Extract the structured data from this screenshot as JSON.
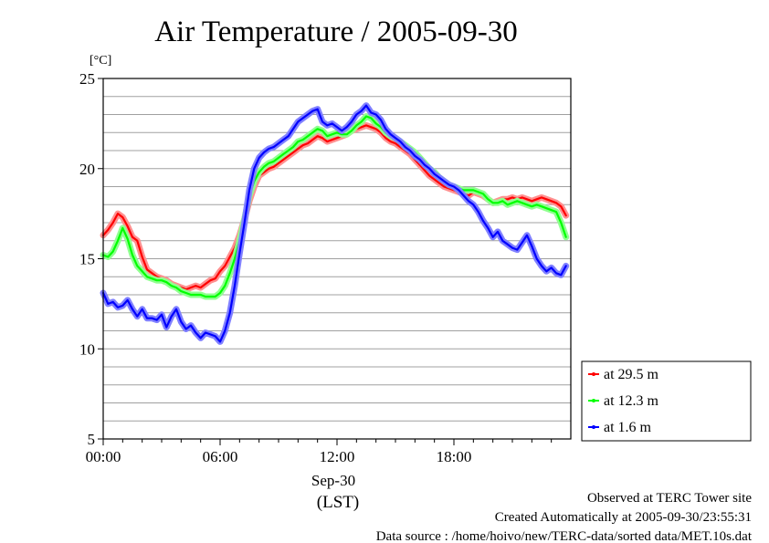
{
  "chart_data": {
    "type": "line",
    "title": "Air Temperature / 2005-09-30",
    "ylabel": "[°C]",
    "xlabel_line1": "Sep-30",
    "xlabel_line2": "(LST)",
    "ylim": [
      5,
      25
    ],
    "xlim": [
      0,
      24
    ],
    "y_ticks": [
      5,
      10,
      15,
      20,
      25
    ],
    "y_tick_labels": [
      "5",
      "10",
      "15",
      "20",
      "25"
    ],
    "x_ticks": [
      0,
      6,
      12,
      18
    ],
    "x_tick_labels": [
      "00:00",
      "06:00",
      "12:00",
      "18:00"
    ],
    "grid": true,
    "legend_position": "right",
    "x": [
      0,
      0.25,
      0.5,
      0.75,
      1,
      1.25,
      1.5,
      1.75,
      2,
      2.25,
      2.5,
      2.75,
      3,
      3.25,
      3.5,
      3.75,
      4,
      4.25,
      4.5,
      4.75,
      5,
      5.25,
      5.5,
      5.75,
      6,
      6.25,
      6.5,
      6.75,
      7,
      7.25,
      7.5,
      7.75,
      8,
      8.25,
      8.5,
      8.75,
      9,
      9.25,
      9.5,
      9.75,
      10,
      10.25,
      10.5,
      10.75,
      11,
      11.25,
      11.5,
      11.75,
      12,
      12.25,
      12.5,
      12.75,
      13,
      13.25,
      13.5,
      13.75,
      14,
      14.25,
      14.5,
      14.75,
      15,
      15.25,
      15.5,
      15.75,
      16,
      16.25,
      16.5,
      16.75,
      17,
      17.25,
      17.5,
      17.75,
      18,
      18.25,
      18.5,
      18.75,
      19,
      19.25,
      19.5,
      19.75,
      20,
      20.25,
      20.5,
      20.75,
      21,
      21.25,
      21.5,
      21.75,
      22,
      22.25,
      22.5,
      22.75,
      23,
      23.25,
      23.5,
      23.75
    ],
    "series": [
      {
        "name": "at 29.5 m",
        "color": "#ff0000",
        "band_color": "#ff9090",
        "values": [
          16.3,
          16.6,
          17.0,
          17.5,
          17.3,
          16.8,
          16.2,
          16.0,
          15.1,
          14.4,
          14.2,
          14.0,
          13.9,
          13.8,
          13.6,
          13.5,
          13.4,
          13.3,
          13.4,
          13.5,
          13.4,
          13.6,
          13.8,
          13.9,
          14.3,
          14.6,
          15.1,
          15.6,
          16.3,
          17.2,
          18.2,
          19.0,
          19.6,
          19.8,
          20.0,
          20.1,
          20.3,
          20.5,
          20.7,
          20.9,
          21.1,
          21.3,
          21.4,
          21.6,
          21.8,
          21.7,
          21.5,
          21.6,
          21.7,
          21.8,
          21.9,
          22.1,
          22.2,
          22.3,
          22.4,
          22.3,
          22.2,
          22.0,
          21.7,
          21.5,
          21.4,
          21.2,
          21.0,
          20.8,
          20.5,
          20.2,
          19.9,
          19.6,
          19.4,
          19.2,
          19.0,
          18.9,
          18.8,
          18.7,
          18.6,
          18.5,
          18.7,
          18.6,
          18.5,
          18.3,
          18.1,
          18.2,
          18.3,
          18.3,
          18.4,
          18.3,
          18.4,
          18.3,
          18.2,
          18.3,
          18.4,
          18.3,
          18.2,
          18.1,
          17.9,
          17.4
        ]
      },
      {
        "name": "at 12.3 m",
        "color": "#00ff00",
        "band_color": "#90ff90",
        "values": [
          15.2,
          15.1,
          15.4,
          16.0,
          16.7,
          16.1,
          15.2,
          14.6,
          14.3,
          14.0,
          13.9,
          13.8,
          13.8,
          13.7,
          13.5,
          13.4,
          13.2,
          13.1,
          13.0,
          13.0,
          13.0,
          12.9,
          12.9,
          12.9,
          13.1,
          13.5,
          14.2,
          15.0,
          16.0,
          17.2,
          18.5,
          19.3,
          19.8,
          20.1,
          20.3,
          20.4,
          20.6,
          20.8,
          21.0,
          21.2,
          21.5,
          21.6,
          21.8,
          22.0,
          22.2,
          22.1,
          21.8,
          21.9,
          22.0,
          21.9,
          21.9,
          22.1,
          22.4,
          22.6,
          22.9,
          22.8,
          22.5,
          22.3,
          22.0,
          21.8,
          21.7,
          21.5,
          21.3,
          21.1,
          20.9,
          20.6,
          20.3,
          20.0,
          19.8,
          19.5,
          19.3,
          19.1,
          19.0,
          18.9,
          18.8,
          18.8,
          18.8,
          18.7,
          18.6,
          18.3,
          18.1,
          18.1,
          18.2,
          18.0,
          18.1,
          18.2,
          18.1,
          18.0,
          17.9,
          18.0,
          17.9,
          17.8,
          17.7,
          17.6,
          17.0,
          16.2
        ]
      },
      {
        "name": "at 1.6 m",
        "color": "#0000ff",
        "band_color": "#8080ff",
        "values": [
          13.1,
          12.5,
          12.6,
          12.3,
          12.4,
          12.7,
          12.2,
          11.8,
          12.2,
          11.7,
          11.7,
          11.6,
          11.9,
          11.2,
          11.8,
          12.2,
          11.5,
          11.1,
          11.3,
          10.9,
          10.6,
          10.9,
          10.8,
          10.7,
          10.4,
          11.0,
          12.0,
          13.5,
          15.3,
          17.0,
          18.8,
          20.0,
          20.6,
          20.9,
          21.1,
          21.2,
          21.4,
          21.6,
          21.8,
          22.2,
          22.6,
          22.8,
          23.0,
          23.2,
          23.3,
          22.6,
          22.4,
          22.5,
          22.3,
          22.1,
          22.3,
          22.6,
          23.0,
          23.2,
          23.5,
          23.1,
          23.0,
          22.7,
          22.2,
          21.9,
          21.7,
          21.5,
          21.2,
          21.0,
          20.7,
          20.5,
          20.2,
          20.0,
          19.7,
          19.5,
          19.3,
          19.1,
          19.0,
          18.8,
          18.5,
          18.2,
          18.0,
          17.6,
          17.1,
          16.7,
          16.2,
          16.5,
          16.0,
          15.8,
          15.6,
          15.5,
          15.9,
          16.3,
          15.7,
          15.0,
          14.6,
          14.3,
          14.5,
          14.2,
          14.1,
          14.6
        ]
      }
    ]
  },
  "footer": {
    "line1": "Observed at TERC Tower site",
    "line2": "Created Automatically at 2005-09-30/23:55:31",
    "line3": "Data source : /home/hoivo/new/TERC-data/sorted  data/MET.10s.dat"
  }
}
